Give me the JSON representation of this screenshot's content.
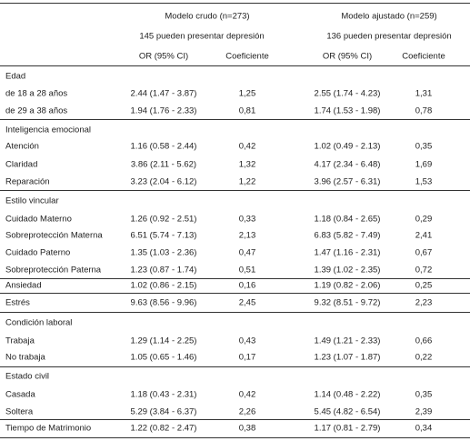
{
  "header": {
    "model_1": "Modelo crudo (n=273)",
    "model_2": "Modelo ajustado (n=259)",
    "sub_1": "145 pueden presentar depresión",
    "sub_2": "136 pueden presentar depresión",
    "columns": [
      "OR (95% CI)",
      "Coeficiente",
      "OR (95% CI)",
      "Coeficiente"
    ]
  },
  "rows": [
    {
      "section": "Edad"
    },
    {
      "label": "de 18 a 28 años",
      "cells": [
        "2.44 (1.47 - 3.87)",
        "1,25",
        "2.55 (1.74 - 4.23)",
        "1,31"
      ]
    },
    {
      "label": "de 29 a 38 años",
      "cells": [
        "1.94 (1.76 - 2.33)",
        "0,81",
        "1.74 (1.53 - 1.98)",
        "0,78"
      ]
    },
    {
      "section": "Inteligencia emocional"
    },
    {
      "label": "Atención",
      "cells": [
        "1.16 (0.58 - 2.44)",
        "0,42",
        "1.02 (0.49 - 2.13)",
        "0,35"
      ]
    },
    {
      "label": "Claridad",
      "cells": [
        "3.86 (2.11 - 5.62)",
        "1,32",
        "4.17 (2.34 - 6.48)",
        "1,69"
      ]
    },
    {
      "label": "Reparación",
      "cells": [
        "3.23 (2.04 - 6.12)",
        "1,22",
        "3.96 (2.57 - 6.31)",
        "1,53"
      ]
    },
    {
      "section": "Estilo vincular"
    },
    {
      "label": "Cuidado Materno",
      "cells": [
        "1.26 (0.92 - 2.51)",
        "0,33",
        "1.18 (0.84 - 2.65)",
        "0,29"
      ]
    },
    {
      "label": "Sobreprotección Materna",
      "cells": [
        "6.51 (5.74 - 7.13)",
        "2,13",
        "6.83 (5.82 - 7.49)",
        "2,41"
      ]
    },
    {
      "label": "Cuidado Paterno",
      "cells": [
        "1.35 (1.03 - 2.36)",
        "0,47",
        "1.47 (1.16 - 2.31)",
        "0,67"
      ]
    },
    {
      "label": "Sobreprotección Paterna",
      "cells": [
        "1.23 (0.87 - 1.74)",
        "0,51",
        "1.39 (1.02 - 2.35)",
        "0,72"
      ]
    },
    {
      "label": "Ansiedad",
      "cells": [
        "1.02 (0.86 - 2.15)",
        "0,16",
        "1.19 (0.82 - 2.06)",
        "0,25"
      ]
    },
    {
      "label": "Estrés",
      "cells": [
        "9.63 (8.56 - 9.96)",
        "2,45",
        "9.32 (8.51 - 9.72)",
        "2,23"
      ]
    },
    {
      "section": "Condición laboral"
    },
    {
      "label": "Trabaja",
      "cells": [
        "1.29 (1.14 - 2.25)",
        "0,43",
        "1.49 (1.21 - 2.33)",
        "0,66"
      ]
    },
    {
      "label": "No trabaja",
      "cells": [
        "1.05 (0.65 - 1.46)",
        "0,17",
        "1.23 (1.07 - 1.87)",
        "0,22"
      ]
    },
    {
      "section": "Estado civil"
    },
    {
      "label": "Casada",
      "cells": [
        "1.18 (0.43 - 2.31)",
        "0,42",
        "1.14 (0.48 - 2.22)",
        "0,35"
      ]
    },
    {
      "label": "Soltera",
      "cells": [
        "5.29 (3.84 - 6.37)",
        "2,26",
        "5.45 (4.82 - 6.54)",
        "2,39"
      ]
    },
    {
      "label": "Tiempo de Matrimonio",
      "cells": [
        "1.22 (0.82 - 2.47)",
        "0,38",
        "1.17 (0.81 - 2.79)",
        "0,34"
      ]
    }
  ]
}
